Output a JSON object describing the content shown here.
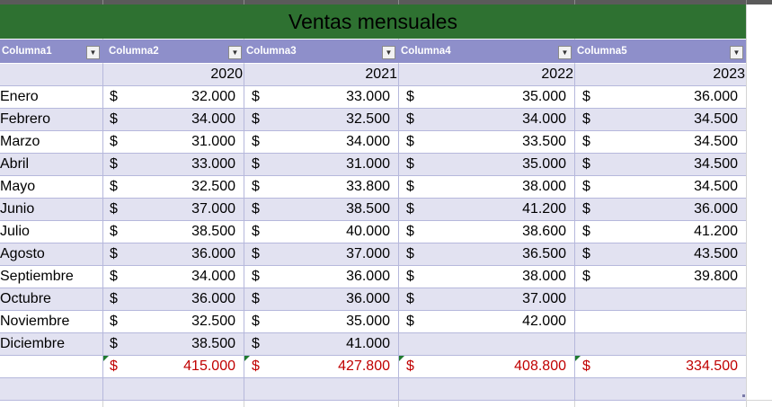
{
  "title": "Ventas mensuales",
  "headers": [
    "Columna1",
    "Columna2",
    "Columna3",
    "Columna4",
    "Columna5"
  ],
  "years": [
    "2020",
    "2021",
    "2022",
    "2023"
  ],
  "currency": "$",
  "rows": [
    {
      "month": "Enero",
      "v": [
        "32.000",
        "33.000",
        "35.000",
        "36.000"
      ]
    },
    {
      "month": "Febrero",
      "v": [
        "34.000",
        "32.500",
        "34.000",
        "34.500"
      ]
    },
    {
      "month": "Marzo",
      "v": [
        "31.000",
        "34.000",
        "33.500",
        "34.500"
      ]
    },
    {
      "month": "Abril",
      "v": [
        "33.000",
        "31.000",
        "35.000",
        "34.500"
      ]
    },
    {
      "month": "Mayo",
      "v": [
        "32.500",
        "33.800",
        "38.000",
        "34.500"
      ]
    },
    {
      "month": "Junio",
      "v": [
        "37.000",
        "38.500",
        "41.200",
        "36.000"
      ]
    },
    {
      "month": "Julio",
      "v": [
        "38.500",
        "40.000",
        "38.600",
        "41.200"
      ]
    },
    {
      "month": "Agosto",
      "v": [
        "36.000",
        "37.000",
        "36.500",
        "43.500"
      ]
    },
    {
      "month": "Septiembre",
      "v": [
        "34.000",
        "36.000",
        "38.000",
        "39.800"
      ]
    },
    {
      "month": "Octubre",
      "v": [
        "36.000",
        "36.000",
        "37.000",
        ""
      ]
    },
    {
      "month": "Noviembre",
      "v": [
        "32.500",
        "35.000",
        "42.000",
        ""
      ]
    },
    {
      "month": "Diciembre",
      "v": [
        "38.500",
        "41.000",
        "",
        ""
      ]
    }
  ],
  "totals": [
    "415.000",
    "427.800",
    "408.800",
    "334.500"
  ],
  "colors": {
    "title_bg": "#2e7131",
    "header_bg": "#8e8fca",
    "band": "#e2e2f1",
    "total_text": "#c00000"
  }
}
